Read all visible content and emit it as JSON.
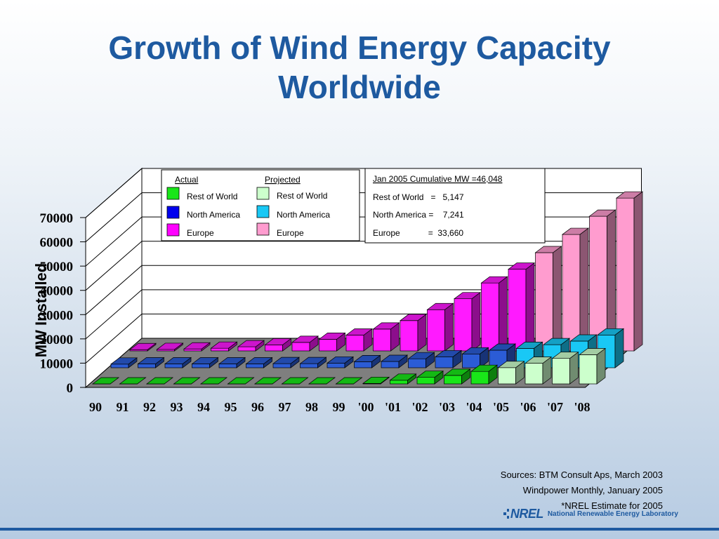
{
  "title_line1": "Growth of Wind Energy Capacity",
  "title_line2": "Worldwide",
  "colors": {
    "title": "#1e5aa0",
    "rest_actual": "#19e619",
    "na_actual": "#2b5cd6",
    "eu_actual": "#ff1aff",
    "rest_projected": "#ccffcc",
    "na_projected": "#19c8f5",
    "eu_projected": "#ff9ccf"
  },
  "legend": {
    "actual_header": "Actual",
    "projected_header": "Projected",
    "rest_actual": "Rest of World",
    "na_actual": "North America",
    "eu_actual": "Europe",
    "rest_projected": "Rest of World",
    "na_projected": "North America",
    "eu_projected": "Europe"
  },
  "info_box": {
    "header": "Jan 2005 Cumulative MW =46,048",
    "line1": "Rest of World   =   5,147",
    "line2": "North America =    7,241",
    "line3": "Europe            =  33,660"
  },
  "sources": {
    "line1": "Sources:  BTM Consult Aps, March 2003",
    "line2": "Windpower Monthly, January 2005",
    "line3": "*NREL Estimate for 2005"
  },
  "logo": {
    "word": "NREL",
    "full": "National Renewable Energy Laboratory"
  },
  "chart_data": {
    "type": "bar",
    "ylabel": "MW Installed",
    "ylim": [
      0,
      70000
    ],
    "yticks": [
      0,
      10000,
      20000,
      30000,
      40000,
      50000,
      60000,
      70000
    ],
    "categories": [
      "90",
      "91",
      "92",
      "93",
      "94",
      "95",
      "96",
      "97",
      "98",
      "99",
      "'00",
      "'01",
      "'02",
      "'03",
      "'04",
      "'05",
      "'06",
      "'07",
      "'08"
    ],
    "projected_from_index": 15,
    "series": [
      {
        "name": "Rest of World",
        "values": [
          0,
          0,
          0,
          0,
          0,
          0,
          0,
          0,
          0,
          0,
          200,
          1500,
          2700,
          3500,
          5147,
          6700,
          8500,
          10500,
          12000
        ]
      },
      {
        "name": "North America",
        "values": [
          1500,
          1600,
          1600,
          1600,
          1600,
          1600,
          1700,
          1700,
          1900,
          2500,
          2600,
          3700,
          4500,
          5700,
          7241,
          8000,
          9500,
          11000,
          13500
        ]
      },
      {
        "name": "Europe",
        "values": [
          500,
          600,
          800,
          1100,
          1700,
          2500,
          3500,
          4800,
          6500,
          9000,
          12500,
          17000,
          21500,
          28000,
          33660,
          40500,
          48000,
          55500,
          63000
        ]
      }
    ]
  }
}
